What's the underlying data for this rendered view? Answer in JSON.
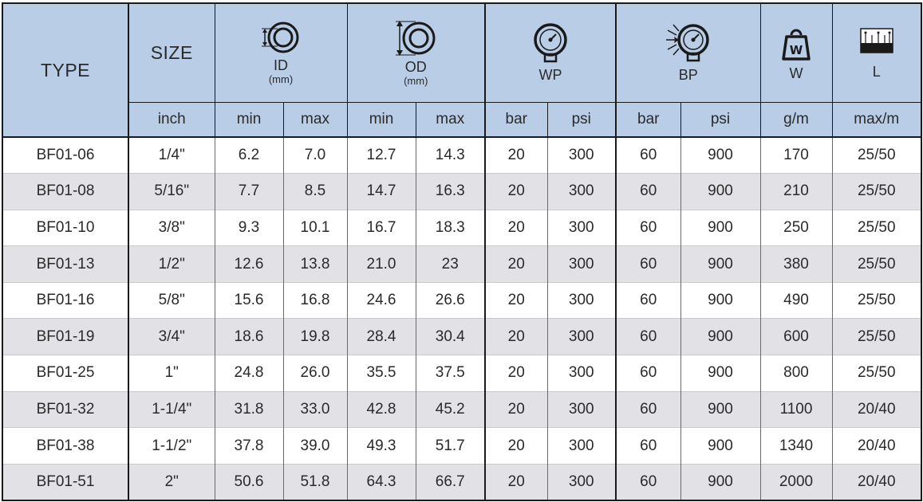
{
  "header": {
    "type": "TYPE",
    "size": "SIZE",
    "id_label": "ID",
    "id_unit": "(mm)",
    "od_label": "OD",
    "od_unit": "(mm)",
    "wp_label": "WP",
    "bp_label": "BP",
    "w_label": "W",
    "l_label": "L",
    "sub": {
      "inch": "inch",
      "id_min": "min",
      "id_max": "max",
      "od_min": "min",
      "od_max": "max",
      "wp_bar": "bar",
      "wp_psi": "psi",
      "bp_bar": "bar",
      "bp_psi": "psi",
      "w_unit": "g/m",
      "l_unit": "max/m"
    },
    "icons": {
      "id": "inner-diameter-icon",
      "od": "outer-diameter-icon",
      "wp": "pressure-gauge-icon",
      "bp": "burst-gauge-icon",
      "w": "weight-icon",
      "l": "length-icon"
    }
  },
  "rows": [
    [
      "BF01-06",
      "1/4\"",
      "6.2",
      "7.0",
      "12.7",
      "14.3",
      "20",
      "300",
      "60",
      "900",
      "170",
      "25/50"
    ],
    [
      "BF01-08",
      "5/16\"",
      "7.7",
      "8.5",
      "14.7",
      "16.3",
      "20",
      "300",
      "60",
      "900",
      "210",
      "25/50"
    ],
    [
      "BF01-10",
      "3/8\"",
      "9.3",
      "10.1",
      "16.7",
      "18.3",
      "20",
      "300",
      "60",
      "900",
      "250",
      "25/50"
    ],
    [
      "BF01-13",
      "1/2\"",
      "12.6",
      "13.8",
      "21.0",
      "23",
      "20",
      "300",
      "60",
      "900",
      "380",
      "25/50"
    ],
    [
      "BF01-16",
      "5/8\"",
      "15.6",
      "16.8",
      "24.6",
      "26.6",
      "20",
      "300",
      "60",
      "900",
      "490",
      "25/50"
    ],
    [
      "BF01-19",
      "3/4\"",
      "18.6",
      "19.8",
      "28.4",
      "30.4",
      "20",
      "300",
      "60",
      "900",
      "600",
      "25/50"
    ],
    [
      "BF01-25",
      "1\"",
      "24.8",
      "26.0",
      "35.5",
      "37.5",
      "20",
      "300",
      "60",
      "900",
      "800",
      "25/50"
    ],
    [
      "BF01-32",
      "1-1/4\"",
      "31.8",
      "33.0",
      "42.8",
      "45.2",
      "20",
      "300",
      "60",
      "900",
      "1100",
      "20/40"
    ],
    [
      "BF01-38",
      "1-1/2\"",
      "37.8",
      "39.0",
      "49.3",
      "51.7",
      "20",
      "300",
      "60",
      "900",
      "1340",
      "20/40"
    ],
    [
      "BF01-51",
      "2\"",
      "50.6",
      "51.8",
      "64.3",
      "66.7",
      "20",
      "300",
      "60",
      "900",
      "2000",
      "20/40"
    ]
  ]
}
